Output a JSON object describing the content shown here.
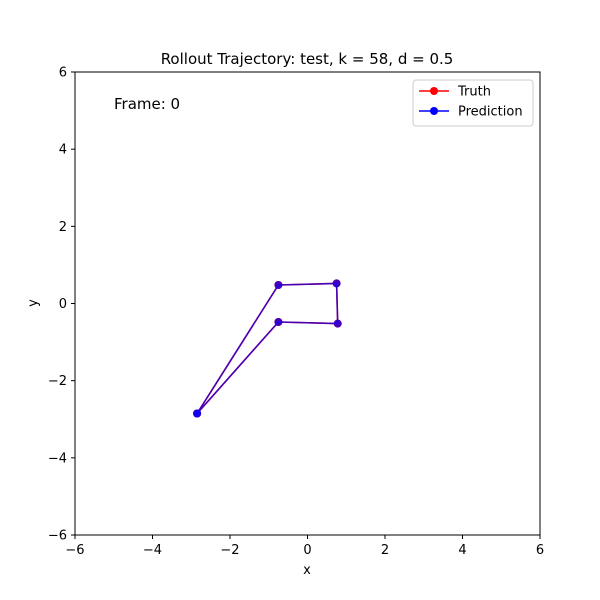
{
  "chart_data": {
    "type": "line",
    "title": "Rollout Trajectory: test, k = 58, d = 0.5",
    "xlabel": "x",
    "ylabel": "y",
    "xlim": [
      -6,
      6
    ],
    "ylim": [
      -6,
      6
    ],
    "xticks": [
      -6,
      -4,
      -2,
      0,
      2,
      4,
      6
    ],
    "yticks": [
      -6,
      -4,
      -2,
      0,
      2,
      4,
      6
    ],
    "xtick_labels": [
      "−6",
      "−4",
      "−2",
      "0",
      "2",
      "4",
      "6"
    ],
    "ytick_labels": [
      "−6",
      "−4",
      "−2",
      "0",
      "2",
      "4",
      "6"
    ],
    "grid": false,
    "legend_position": "top-right",
    "annotation": "Frame: 0",
    "series": [
      {
        "name": "Truth",
        "color": "#ff0000",
        "x": [
          -2.85,
          -0.75,
          0.75,
          0.78,
          -0.75,
          -2.85
        ],
        "y": [
          -2.85,
          0.48,
          0.52,
          -0.52,
          -0.48,
          -2.85
        ]
      },
      {
        "name": "Prediction",
        "color": "#0000ff",
        "x": [
          -2.85,
          -0.75,
          0.75,
          0.78,
          -0.75,
          -2.85
        ],
        "y": [
          -2.85,
          0.48,
          0.52,
          -0.52,
          -0.48,
          -2.85
        ]
      }
    ]
  }
}
